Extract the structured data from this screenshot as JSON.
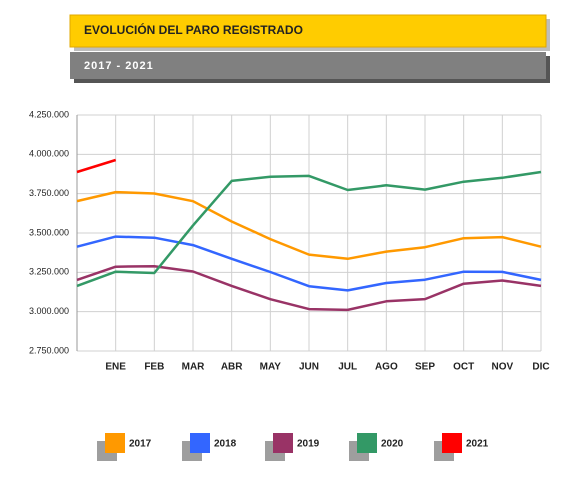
{
  "chart_data": {
    "type": "line",
    "title": "EVOLUCIÓN DEL PARO REGISTRADO",
    "subtitle": "2017 - 2021",
    "categories": [
      null,
      "ENE",
      "FEB",
      "MAR",
      "ABR",
      "MAY",
      "JUN",
      "JUL",
      "AGO",
      "SEP",
      "OCT",
      "NOV",
      "DIC"
    ],
    "series": [
      {
        "name": "2017",
        "color": "#ff9900",
        "values": [
          3703000,
          3760000,
          3751000,
          3702000,
          3573000,
          3461000,
          3363000,
          3336000,
          3382000,
          3410000,
          3467000,
          3474000,
          3413000
        ]
      },
      {
        "name": "2018",
        "color": "#3366ff",
        "values": [
          3413000,
          3477000,
          3470000,
          3423000,
          3336000,
          3252000,
          3162000,
          3135000,
          3182000,
          3203000,
          3254000,
          3253000,
          3202000
        ]
      },
      {
        "name": "2019",
        "color": "#993366",
        "values": [
          3202000,
          3286000,
          3289000,
          3255000,
          3164000,
          3079000,
          3016000,
          3011000,
          3066000,
          3080000,
          3178000,
          3198000,
          3164000
        ]
      },
      {
        "name": "2020",
        "color": "#339966",
        "values": [
          3164000,
          3254000,
          3246000,
          3548000,
          3831000,
          3858000,
          3863000,
          3773000,
          3803000,
          3776000,
          3826000,
          3851000,
          3888000
        ]
      },
      {
        "name": "2021",
        "color": "#ff0000",
        "values": [
          3888000,
          3964000,
          null,
          null,
          null,
          null,
          null,
          null,
          null,
          null,
          null,
          null,
          null
        ]
      }
    ],
    "ylim": [
      2750000,
      4250000
    ],
    "yticks": [
      {
        "value": 2750000,
        "label": "2.750.000"
      },
      {
        "value": 3000000,
        "label": "3.000.000"
      },
      {
        "value": 3250000,
        "label": "3.250.000"
      },
      {
        "value": 3500000,
        "label": "3.500.000"
      },
      {
        "value": 3750000,
        "label": "3.750.000"
      },
      {
        "value": 4000000,
        "label": "4.000.000"
      },
      {
        "value": 4250000,
        "label": "4.250.000"
      }
    ],
    "grid": true
  }
}
